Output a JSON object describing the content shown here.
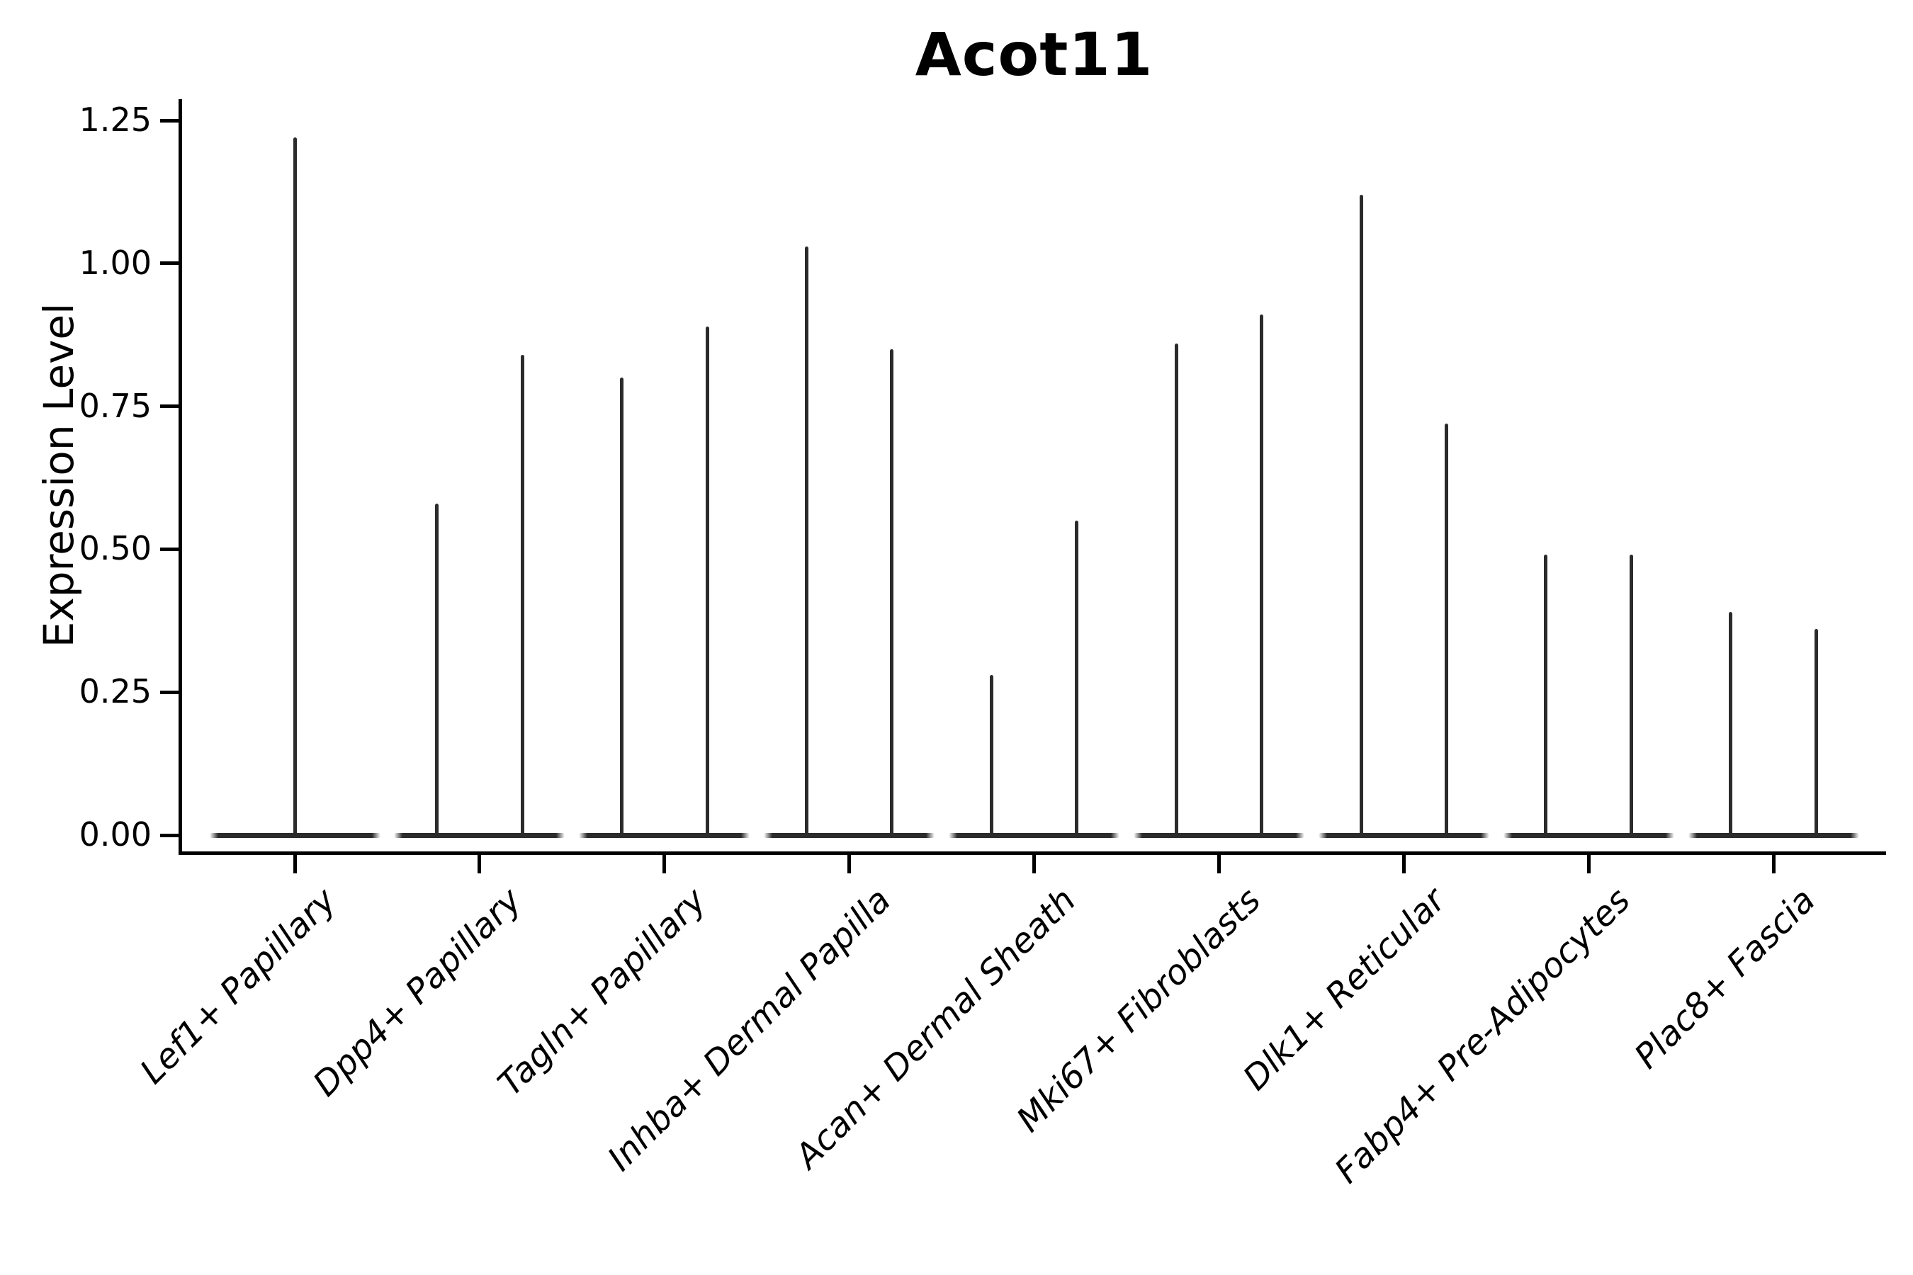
{
  "chart_data": {
    "type": "violin",
    "title": "Acot11",
    "ylabel": "Expression Level",
    "xlabel": "",
    "yticks": [
      "0.00",
      "0.25",
      "0.50",
      "0.75",
      "1.00",
      "1.25"
    ],
    "ylim": [
      -0.03,
      1.29
    ],
    "grid": false,
    "legend": false,
    "categories": [
      "Lef1+ Papillary",
      "Dpp4+ Papillary",
      "Tagln+ Papillary",
      "Inhba+ Dermal Papilla",
      "Acan+ Dermal Sheath",
      "Mki67+ Fibroblasts",
      "Dlk1+ Reticular",
      "Fabp4+ Pre-Adipocytes",
      "Plac8+ Fascia"
    ],
    "violin_max_values": [
      [
        1.22
      ],
      [
        0.58,
        0.84
      ],
      [
        0.8,
        0.89
      ],
      [
        1.03,
        0.85
      ],
      [
        0.28,
        0.55
      ],
      [
        0.86,
        0.91
      ],
      [
        1.12,
        0.72
      ],
      [
        0.49,
        0.49
      ],
      [
        0.39,
        0.36
      ]
    ],
    "colors": {
      "violin": "#2b2b2b",
      "text": "#000000",
      "spine": "#000000",
      "background": "#ffffff"
    }
  }
}
